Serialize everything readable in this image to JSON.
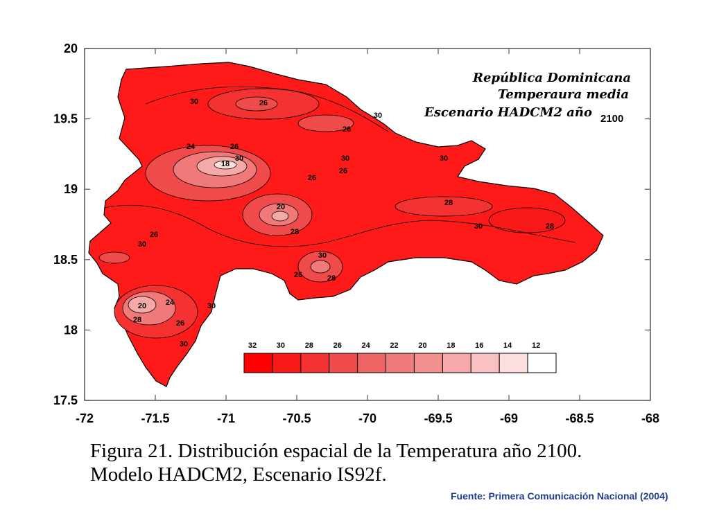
{
  "map": {
    "title_lines": [
      "República Dominicana",
      "Temperaura media",
      "Escenario HADCM2 año"
    ],
    "year": "2100",
    "x_ticks": [
      "-72",
      "-71.5",
      "-71",
      "-70.5",
      "-70",
      "-69.5",
      "-69",
      "-68.5",
      "-68"
    ],
    "y_ticks": [
      "20",
      "19.5",
      "19",
      "18.5",
      "18",
      "17.5"
    ],
    "legend": {
      "labels": [
        "32",
        "30",
        "28",
        "26",
        "24",
        "22",
        "20",
        "18",
        "16",
        "14",
        "12"
      ],
      "colors": [
        "#ff0000",
        "#f91818",
        "#f43232",
        "#f04b4b",
        "#ee6363",
        "#f07a7a",
        "#f39191",
        "#f6a9a9",
        "#f9c1c1",
        "#fcdede",
        "#ffffff"
      ]
    },
    "contour_labels": [
      "30",
      "26",
      "30",
      "26",
      "24",
      "26",
      "18",
      "30",
      "30",
      "26",
      "30",
      "28",
      "20",
      "26",
      "30",
      "28",
      "26",
      "30",
      "28",
      "30",
      "26",
      "28",
      "20",
      "24",
      "26",
      "30",
      "30",
      "28"
    ]
  },
  "caption": {
    "line1": "Figura 21. Distribución espacial de la Temperatura año 2100.",
    "line2": "Modelo HADCM2, Escenario IS92f."
  },
  "source": "Fuente: Primera Comunicación Nacional (2004)"
}
